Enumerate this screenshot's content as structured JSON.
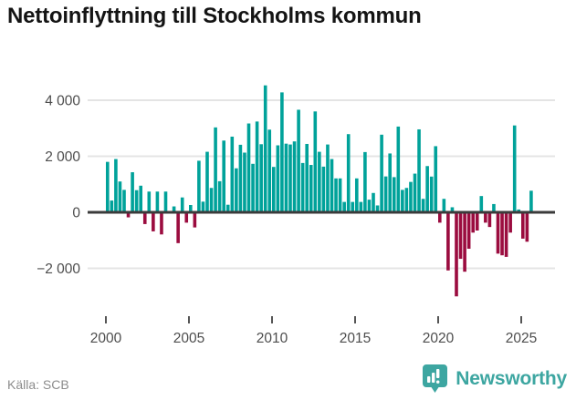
{
  "title": "Nettoinflyttning till Stockholms kommun",
  "footer": {
    "source": "Källa: SCB",
    "brand": "Newsworthy"
  },
  "icons": {
    "brand_badge": "newsworthy-bar-chart-badge"
  },
  "chart_data": {
    "type": "bar",
    "title": "Nettoinflyttning till Stockholms kommun",
    "xlabel": "",
    "ylabel": "",
    "frequency": "quarterly",
    "start_year": 2000,
    "start_quarter": 1,
    "values": [
      1800,
      420,
      1900,
      1100,
      800,
      -180,
      1430,
      790,
      950,
      -420,
      740,
      -680,
      740,
      -790,
      740,
      0,
      210,
      -1100,
      530,
      -370,
      260,
      -540,
      1840,
      380,
      2160,
      870,
      3030,
      1110,
      2560,
      270,
      2700,
      1570,
      2410,
      2130,
      3170,
      1730,
      3240,
      2430,
      4530,
      2950,
      1620,
      2390,
      4280,
      2450,
      2420,
      2530,
      3660,
      1760,
      2440,
      1690,
      3600,
      2160,
      1630,
      2420,
      1900,
      1210,
      1210,
      370,
      2790,
      370,
      1210,
      370,
      2150,
      450,
      690,
      245,
      2770,
      1280,
      2100,
      1255,
      3060,
      800,
      870,
      1085,
      1380,
      2960,
      480,
      1650,
      1275,
      2360,
      -370,
      480,
      -2075,
      180,
      -3000,
      -1660,
      -2120,
      -1300,
      -725,
      -650,
      580,
      -370,
      -525,
      295,
      -1475,
      -1535,
      -1590,
      -725,
      3100,
      100,
      -940,
      -1050,
      770
    ],
    "yticks": [
      4000,
      2000,
      0,
      -2000
    ],
    "ytick_labels": [
      "4 000",
      "2 000",
      "0",
      "−2 000"
    ],
    "xticks": [
      2000,
      2005,
      2010,
      2015,
      2020,
      2025
    ],
    "ylim": [
      -3400,
      4800
    ],
    "grid": "horizontal",
    "legend": "none",
    "colors": {
      "positive": "#00a29a",
      "negative": "#9b0c3f",
      "gridline": "#e4e4e4",
      "zero_line": "#3b3b3b",
      "brand": "#3da6a1"
    }
  }
}
